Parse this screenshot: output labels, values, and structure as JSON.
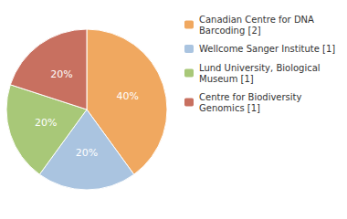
{
  "chart_data": {
    "type": "pie",
    "categories": [
      "Canadian Centre for DNA\nBarcoding [2]",
      "Wellcome Sanger Institute [1]",
      "Lund University, Biological\nMuseum [1]",
      "Centre for Biodiversity\nGenomics [1]"
    ],
    "values": [
      40,
      20,
      20,
      20
    ],
    "value_labels": [
      "40%",
      "20%",
      "20%",
      "20%"
    ],
    "colors": [
      "#f0a860",
      "#aac4e0",
      "#a8c878",
      "#c87060"
    ],
    "data_labels": true,
    "legend": "upper right"
  }
}
